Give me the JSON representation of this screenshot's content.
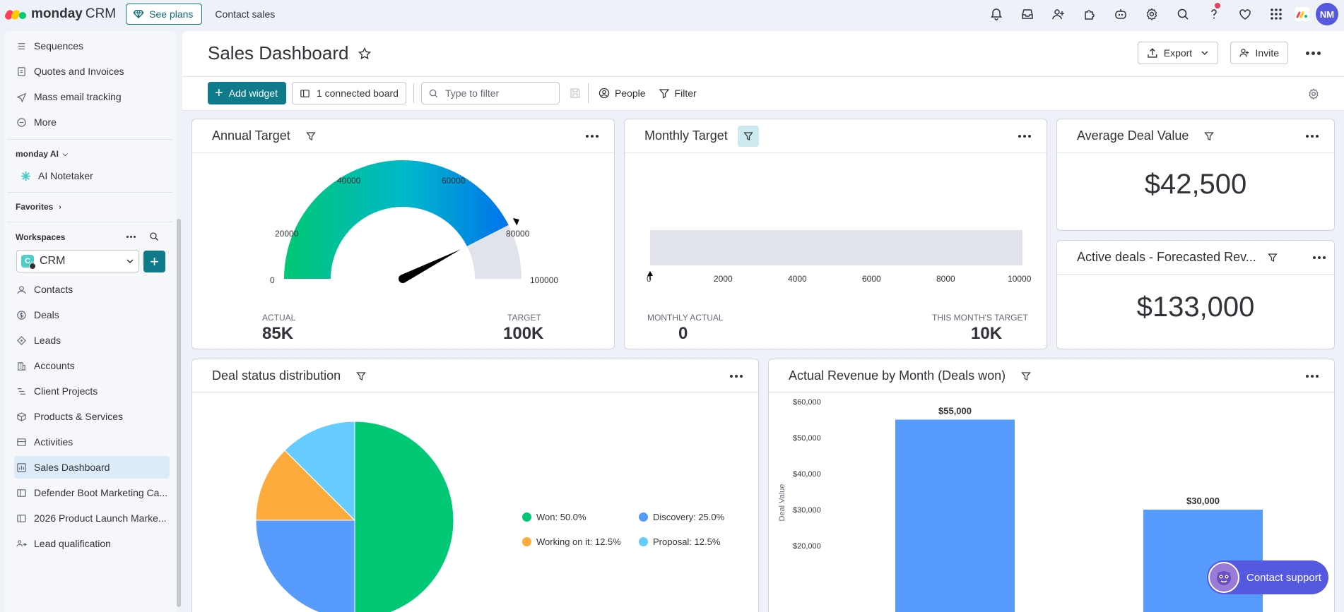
{
  "topbar": {
    "brand": "monday",
    "brand_suffix": "CRM",
    "see_plans": "See plans",
    "contact_sales": "Contact sales",
    "avatar_initials": "NM"
  },
  "sidebar": {
    "items_top": [
      {
        "label": "Sequences",
        "icon": "sequences-icon"
      },
      {
        "label": "Quotes and Invoices",
        "icon": "invoice-icon"
      },
      {
        "label": "Mass email tracking",
        "icon": "send-icon"
      },
      {
        "label": "More",
        "icon": "more-circle-icon"
      }
    ],
    "monday_ai": "monday AI",
    "ai_notetaker": "AI Notetaker",
    "favorites": "Favorites",
    "workspaces": "Workspaces",
    "workspace": {
      "badge": "C",
      "name": "CRM"
    },
    "items": [
      {
        "label": "Contacts"
      },
      {
        "label": "Deals"
      },
      {
        "label": "Leads"
      },
      {
        "label": "Accounts"
      },
      {
        "label": "Client Projects"
      },
      {
        "label": "Products & Services"
      },
      {
        "label": "Activities"
      },
      {
        "label": "Sales Dashboard"
      },
      {
        "label": "Defender Boot Marketing Ca..."
      },
      {
        "label": "2026 Product Launch Marke..."
      },
      {
        "label": "Lead qualification"
      }
    ]
  },
  "header": {
    "title": "Sales Dashboard",
    "export": "Export",
    "invite": "Invite"
  },
  "toolbar": {
    "add_widget": "Add widget",
    "connected_board": "1 connected board",
    "filter_placeholder": "Type to filter",
    "people": "People",
    "filter": "Filter"
  },
  "widgets": {
    "annual_target": {
      "title": "Annual Target",
      "ticks": [
        "0",
        "20000",
        "40000",
        "60000",
        "80000",
        "100000"
      ],
      "actual_label": "ACTUAL",
      "actual_value": "85K",
      "target_label": "TARGET",
      "target_value": "100K",
      "actual_number": 85000,
      "max_number": 100000
    },
    "monthly_target": {
      "title": "Monthly Target",
      "ticks": [
        "0",
        "2000",
        "4000",
        "6000",
        "8000",
        "10000"
      ],
      "actual_label": "MONTHLY ACTUAL",
      "actual_value": "0",
      "target_label": "THIS MONTH'S TARGET",
      "target_value": "10K"
    },
    "average_deal": {
      "title": "Average Deal Value",
      "value": "$42,500"
    },
    "active_deals": {
      "title": "Active deals - Forecasted Rev...",
      "value": "$133,000"
    },
    "deal_status": {
      "title": "Deal status distribution",
      "legend": [
        {
          "label": "Won: 50.0%",
          "color": "#00c875"
        },
        {
          "label": "Discovery: 25.0%",
          "color": "#579bfc"
        },
        {
          "label": "Working on it: 12.5%",
          "color": "#fdab3d"
        },
        {
          "label": "Proposal: 12.5%",
          "color": "#66ccff"
        }
      ]
    },
    "revenue": {
      "title": "Actual Revenue by Month (Deals won)"
    }
  },
  "chart_data": [
    {
      "type": "pie",
      "title": "Deal status distribution",
      "categories": [
        "Won",
        "Discovery",
        "Working on it",
        "Proposal"
      ],
      "values": [
        50.0,
        25.0,
        12.5,
        12.5
      ],
      "colors": [
        "#00c875",
        "#579bfc",
        "#fdab3d",
        "#66ccff"
      ],
      "legend": "right"
    },
    {
      "type": "bar",
      "title": "Actual Revenue by Month (Deals won)",
      "ylabel": "Deal Value",
      "yticks": [
        "$20,000",
        "$30,000",
        "$40,000",
        "$50,000",
        "$60,000"
      ],
      "ytick_values": [
        20000,
        30000,
        40000,
        50000,
        60000
      ],
      "values": [
        55000,
        30000
      ],
      "data_labels": [
        "$55,000",
        "$30,000"
      ],
      "color": "#579bfc",
      "grid": false
    }
  ],
  "support": {
    "label": "Contact support"
  }
}
